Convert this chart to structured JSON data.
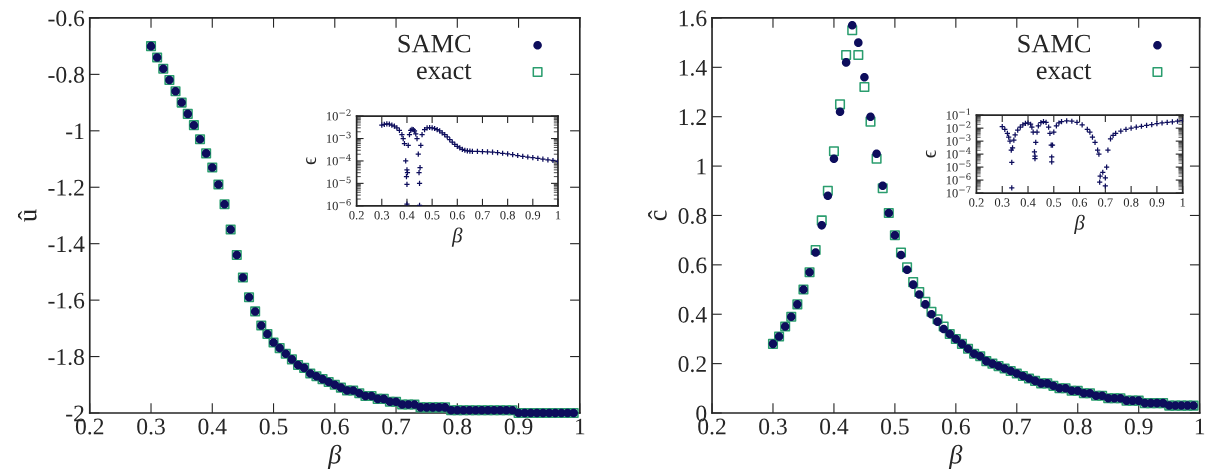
{
  "chart_data": [
    {
      "type": "scatter",
      "xlabel": "β",
      "ylabel": "û",
      "xlim": [
        0.2,
        1
      ],
      "ylim": [
        -2,
        -0.6
      ],
      "xticks": [
        0.2,
        0.3,
        0.4,
        0.5,
        0.6,
        0.7,
        0.8,
        0.9,
        1
      ],
      "yticks": [
        -2,
        -1.8,
        -1.6,
        -1.4,
        -1.2,
        -1,
        -0.8,
        -0.6
      ],
      "legend": "top right",
      "grid": false,
      "x": [
        0.3,
        0.31,
        0.32,
        0.33,
        0.34,
        0.35,
        0.36,
        0.37,
        0.38,
        0.39,
        0.4,
        0.41,
        0.42,
        0.43,
        0.44,
        0.45,
        0.46,
        0.47,
        0.48,
        0.49,
        0.5,
        0.51,
        0.52,
        0.53,
        0.54,
        0.55,
        0.56,
        0.57,
        0.58,
        0.59,
        0.6,
        0.61,
        0.62,
        0.63,
        0.64,
        0.65,
        0.66,
        0.67,
        0.68,
        0.69,
        0.7,
        0.71,
        0.72,
        0.73,
        0.74,
        0.75,
        0.76,
        0.77,
        0.78,
        0.79,
        0.8,
        0.81,
        0.82,
        0.83,
        0.84,
        0.85,
        0.86,
        0.87,
        0.88,
        0.89,
        0.9,
        0.91,
        0.92,
        0.93,
        0.94,
        0.95,
        0.96,
        0.97,
        0.98,
        0.99
      ],
      "series": [
        {
          "name": "SAMC",
          "color": "#0d0d5c",
          "marker": "circle",
          "values": [
            -0.7,
            -0.74,
            -0.78,
            -0.82,
            -0.86,
            -0.9,
            -0.94,
            -0.98,
            -1.03,
            -1.08,
            -1.13,
            -1.19,
            -1.26,
            -1.35,
            -1.44,
            -1.52,
            -1.59,
            -1.64,
            -1.69,
            -1.72,
            -1.75,
            -1.77,
            -1.79,
            -1.81,
            -1.83,
            -1.84,
            -1.86,
            -1.87,
            -1.88,
            -1.89,
            -1.9,
            -1.91,
            -1.92,
            -1.92,
            -1.93,
            -1.94,
            -1.94,
            -1.95,
            -1.95,
            -1.96,
            -1.96,
            -1.97,
            -1.97,
            -1.97,
            -1.98,
            -1.98,
            -1.98,
            -1.98,
            -1.98,
            -1.99,
            -1.99,
            -1.99,
            -1.99,
            -1.99,
            -1.99,
            -1.99,
            -1.99,
            -1.99,
            -1.99,
            -1.99,
            -2.0,
            -2.0,
            -2.0,
            -2.0,
            -2.0,
            -2.0,
            -2.0,
            -2.0,
            -2.0,
            -2.0
          ]
        },
        {
          "name": "exact",
          "color": "#2a9d6e",
          "marker": "square",
          "values": [
            -0.7,
            -0.74,
            -0.78,
            -0.82,
            -0.86,
            -0.9,
            -0.94,
            -0.98,
            -1.03,
            -1.08,
            -1.13,
            -1.19,
            -1.26,
            -1.35,
            -1.44,
            -1.52,
            -1.59,
            -1.64,
            -1.69,
            -1.72,
            -1.75,
            -1.77,
            -1.79,
            -1.81,
            -1.83,
            -1.84,
            -1.86,
            -1.87,
            -1.88,
            -1.89,
            -1.9,
            -1.91,
            -1.92,
            -1.92,
            -1.93,
            -1.94,
            -1.94,
            -1.95,
            -1.95,
            -1.96,
            -1.96,
            -1.97,
            -1.97,
            -1.97,
            -1.98,
            -1.98,
            -1.98,
            -1.98,
            -1.98,
            -1.99,
            -1.99,
            -1.99,
            -1.99,
            -1.99,
            -1.99,
            -1.99,
            -1.99,
            -1.99,
            -1.99,
            -1.99,
            -2.0,
            -2.0,
            -2.0,
            -2.0,
            -2.0,
            -2.0,
            -2.0,
            -2.0,
            -2.0,
            -2.0
          ]
        }
      ]
    },
    {
      "type": "scatter",
      "xlabel": "β",
      "ylabel": "ϵ",
      "log": "y",
      "xlim": [
        0.2,
        1
      ],
      "ylim": [
        1e-06,
        0.01
      ],
      "xticks": [
        0.2,
        0.3,
        0.4,
        0.5,
        0.6,
        0.7,
        0.8,
        0.9,
        1
      ],
      "yticks": [
        {
          "value": 1e-06,
          "label": "10$^{−6}$"
        },
        {
          "value": 1e-05,
          "label": "10$^{−5}$"
        },
        {
          "value": 0.0001,
          "label": "10$^{−4}$"
        },
        {
          "value": 0.001,
          "label": "10$^{−3}$"
        },
        {
          "value": 0.01,
          "label": "10$^{−2}$"
        }
      ],
      "grid": false,
      "series": [
        {
          "color": "#0d0d5c",
          "marker": "cross",
          "x": [
            0.3,
            0.31,
            0.32,
            0.33,
            0.34,
            0.35,
            0.36,
            0.37,
            0.38,
            0.385,
            0.39,
            0.395,
            0.398,
            0.4,
            0.4,
            0.4,
            0.402,
            0.405,
            0.41,
            0.415,
            0.42,
            0.425,
            0.43,
            0.435,
            0.44,
            0.445,
            0.448,
            0.45,
            0.45,
            0.452,
            0.455,
            0.46,
            0.47,
            0.48,
            0.49,
            0.5,
            0.51,
            0.52,
            0.53,
            0.54,
            0.55,
            0.56,
            0.57,
            0.58,
            0.59,
            0.6,
            0.61,
            0.62,
            0.63,
            0.64,
            0.65,
            0.66,
            0.68,
            0.7,
            0.72,
            0.74,
            0.76,
            0.78,
            0.8,
            0.82,
            0.84,
            0.86,
            0.88,
            0.9,
            0.92,
            0.94,
            0.96,
            0.98,
            1.0
          ],
          "values": [
            0.004,
            0.0043,
            0.0045,
            0.0044,
            0.004,
            0.0036,
            0.003,
            0.0023,
            0.0015,
            0.001,
            0.0006,
            0.0001,
            2e-05,
            9e-06,
            1.2e-06,
            4e-05,
            3e-05,
            0.0005,
            0.0015,
            0.0023,
            0.0026,
            0.0025,
            0.0022,
            0.0016,
            0.001,
            0.0002,
            3e-05,
            1e-05,
            1.05e-06,
            5e-05,
            0.0005,
            0.0015,
            0.0025,
            0.003,
            0.0031,
            0.003,
            0.0028,
            0.0025,
            0.0022,
            0.0018,
            0.0015,
            0.0012,
            0.0009,
            0.0007,
            0.00055,
            0.00045,
            0.00038,
            0.00033,
            0.0003,
            0.00028,
            0.000275,
            0.00027,
            0.000265,
            0.00026,
            0.000255,
            0.00025,
            0.000235,
            0.00022,
            0.000205,
            0.00019,
            0.000175,
            0.00016,
            0.00015,
            0.00014,
            0.00013,
            0.00012,
            0.000112,
            0.000105,
            9.5e-05
          ]
        }
      ]
    },
    {
      "type": "scatter",
      "xlabel": "β",
      "ylabel": "ĉ",
      "xlim": [
        0.2,
        1
      ],
      "ylim": [
        0,
        1.6
      ],
      "xticks": [
        0.2,
        0.3,
        0.4,
        0.5,
        0.6,
        0.7,
        0.8,
        0.9,
        1
      ],
      "yticks": [
        0,
        0.2,
        0.4,
        0.6,
        0.8,
        1,
        1.2,
        1.4,
        1.6
      ],
      "legend": "top right",
      "grid": false,
      "x": [
        0.3,
        0.31,
        0.32,
        0.33,
        0.34,
        0.35,
        0.36,
        0.37,
        0.38,
        0.39,
        0.4,
        0.41,
        0.42,
        0.43,
        0.44,
        0.45,
        0.46,
        0.47,
        0.48,
        0.49,
        0.5,
        0.51,
        0.52,
        0.53,
        0.54,
        0.55,
        0.56,
        0.57,
        0.58,
        0.59,
        0.6,
        0.61,
        0.62,
        0.63,
        0.64,
        0.65,
        0.66,
        0.67,
        0.68,
        0.69,
        0.7,
        0.71,
        0.72,
        0.73,
        0.74,
        0.75,
        0.76,
        0.77,
        0.78,
        0.79,
        0.8,
        0.81,
        0.82,
        0.83,
        0.84,
        0.85,
        0.86,
        0.87,
        0.88,
        0.89,
        0.9,
        0.91,
        0.92,
        0.93,
        0.94,
        0.95,
        0.96,
        0.97,
        0.98,
        0.99
      ],
      "series": [
        {
          "name": "SAMC",
          "color": "#0d0d5c",
          "marker": "circle",
          "values": [
            0.28,
            0.31,
            0.35,
            0.39,
            0.44,
            0.5,
            0.57,
            0.65,
            0.76,
            0.88,
            1.03,
            1.22,
            1.42,
            1.57,
            1.5,
            1.36,
            1.2,
            1.05,
            0.92,
            0.81,
            0.72,
            0.64,
            0.58,
            0.52,
            0.48,
            0.44,
            0.4,
            0.37,
            0.34,
            0.32,
            0.3,
            0.28,
            0.26,
            0.24,
            0.23,
            0.21,
            0.2,
            0.19,
            0.18,
            0.17,
            0.16,
            0.15,
            0.14,
            0.13,
            0.12,
            0.12,
            0.11,
            0.1,
            0.1,
            0.09,
            0.09,
            0.08,
            0.08,
            0.07,
            0.07,
            0.06,
            0.06,
            0.06,
            0.05,
            0.05,
            0.05,
            0.04,
            0.04,
            0.04,
            0.04,
            0.03,
            0.03,
            0.03,
            0.03,
            0.03
          ]
        },
        {
          "name": "exact",
          "color": "#2a9d6e",
          "marker": "square",
          "values": [
            0.28,
            0.31,
            0.35,
            0.39,
            0.44,
            0.5,
            0.57,
            0.66,
            0.78,
            0.9,
            1.06,
            1.25,
            1.45,
            1.55,
            1.45,
            1.32,
            1.18,
            1.03,
            0.91,
            0.81,
            0.72,
            0.65,
            0.59,
            0.53,
            0.49,
            0.45,
            0.41,
            0.38,
            0.35,
            0.32,
            0.3,
            0.28,
            0.26,
            0.24,
            0.23,
            0.21,
            0.2,
            0.19,
            0.18,
            0.17,
            0.16,
            0.15,
            0.14,
            0.13,
            0.12,
            0.12,
            0.11,
            0.1,
            0.1,
            0.09,
            0.09,
            0.08,
            0.08,
            0.07,
            0.07,
            0.06,
            0.06,
            0.06,
            0.05,
            0.05,
            0.05,
            0.04,
            0.04,
            0.04,
            0.04,
            0.03,
            0.03,
            0.03,
            0.03,
            0.03
          ]
        }
      ]
    },
    {
      "type": "scatter",
      "xlabel": "β",
      "ylabel": "ϵ",
      "log": "y",
      "xlim": [
        0.2,
        1
      ],
      "ylim": [
        1e-07,
        0.1
      ],
      "xticks": [
        0.2,
        0.3,
        0.4,
        0.5,
        0.6,
        0.7,
        0.8,
        0.9,
        1
      ],
      "yticks": [
        {
          "value": 1e-07,
          "label": "10$^{−7}$"
        },
        {
          "value": 1e-06,
          "label": "10$^{−6}$"
        },
        {
          "value": 1e-05,
          "label": "10$^{−5}$"
        },
        {
          "value": 0.0001,
          "label": "10$^{−4}$"
        },
        {
          "value": 0.001,
          "label": "10$^{−3}$"
        },
        {
          "value": 0.01,
          "label": "10$^{−2}$"
        },
        {
          "value": 0.1,
          "label": "10$^{−1}$"
        }
      ],
      "grid": false,
      "series": [
        {
          "color": "#0d0d5c",
          "marker": "cross",
          "x": [
            0.3,
            0.31,
            0.32,
            0.325,
            0.33,
            0.335,
            0.337,
            0.337,
            0.34,
            0.345,
            0.35,
            0.36,
            0.37,
            0.38,
            0.39,
            0.4,
            0.41,
            0.415,
            0.42,
            0.425,
            0.427,
            0.427,
            0.43,
            0.435,
            0.44,
            0.45,
            0.46,
            0.47,
            0.48,
            0.485,
            0.49,
            0.492,
            0.492,
            0.495,
            0.5,
            0.51,
            0.52,
            0.53,
            0.55,
            0.57,
            0.59,
            0.61,
            0.63,
            0.64,
            0.65,
            0.66,
            0.67,
            0.675,
            0.68,
            0.678,
            0.69,
            0.7,
            0.7,
            0.705,
            0.71,
            0.72,
            0.73,
            0.74,
            0.76,
            0.78,
            0.8,
            0.82,
            0.84,
            0.86,
            0.88,
            0.9,
            0.92,
            0.94,
            0.96,
            0.98,
            1.0
          ],
          "values": [
            0.013,
            0.008,
            0.004,
            0.002,
            0.001,
            0.0002,
            2.3e-05,
            2.5e-07,
            0.0003,
            0.0012,
            0.003,
            0.007,
            0.012,
            0.018,
            0.023,
            0.025,
            0.02,
            0.012,
            0.005,
            0.00015,
            7e-05,
            4.5e-05,
            0.0008,
            0.005,
            0.015,
            0.027,
            0.032,
            0.028,
            0.012,
            0.004,
            0.0005,
            6e-05,
            2.5e-05,
            0.0005,
            0.005,
            0.015,
            0.025,
            0.032,
            0.036,
            0.034,
            0.028,
            0.018,
            0.008,
            0.005,
            0.002,
            0.0008,
            0.0002,
            0.0001,
            2e-06,
            7e-07,
            4e-06,
            1.5e-06,
            3.5e-07,
            1e-05,
            0.0002,
            0.0015,
            0.0028,
            0.004,
            0.006,
            0.008,
            0.01,
            0.012,
            0.014,
            0.0165,
            0.019,
            0.022,
            0.025,
            0.028,
            0.03,
            0.034,
            0.038
          ]
        }
      ]
    }
  ]
}
